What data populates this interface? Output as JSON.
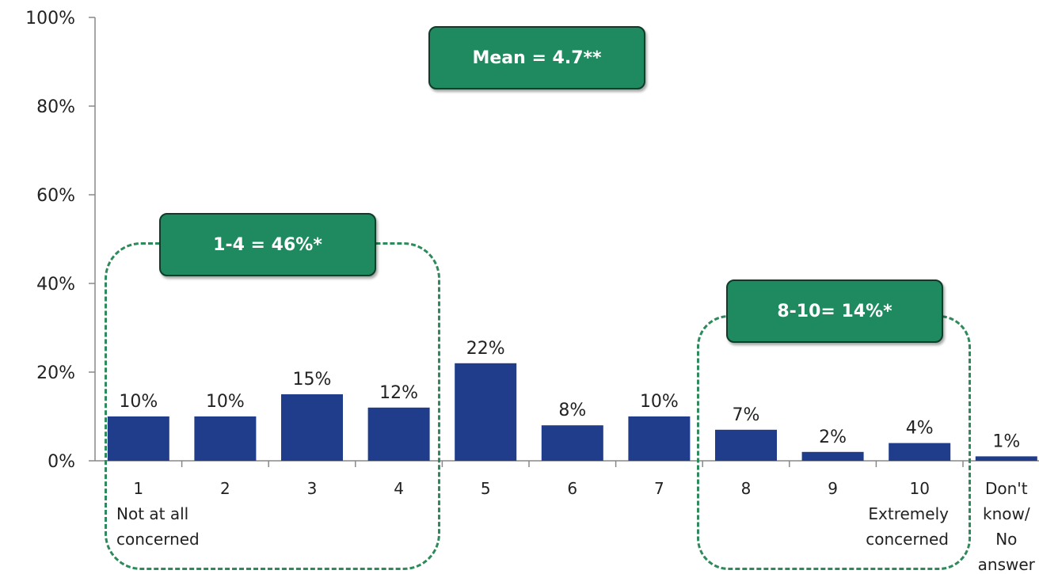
{
  "chart_data": {
    "type": "bar",
    "categories": [
      "1\nNot at all\nconcerned",
      "2",
      "3",
      "4",
      "5",
      "6",
      "7",
      "8",
      "9",
      "10\nExtremely\nconcerned",
      "Don't\nknow/\nNo\nanswer"
    ],
    "values": [
      10,
      10,
      15,
      12,
      22,
      8,
      10,
      7,
      2,
      4,
      1
    ],
    "data_labels": [
      "10%",
      "10%",
      "15%",
      "12%",
      "22%",
      "8%",
      "10%",
      "7%",
      "2%",
      "4%",
      "1%"
    ],
    "y_ticks": [
      "0%",
      "20%",
      "40%",
      "60%",
      "80%",
      "100%"
    ],
    "ylim": [
      0,
      100
    ],
    "grid": false,
    "colors": {
      "bar": "#1f3d8a",
      "callout": "#1f8a5f",
      "dashed": "#2e8a5a"
    },
    "annotations": {
      "mean": "Mean = 4.7**",
      "low_group": "1-4 = 46%*",
      "high_group": "8-10= 14%*"
    }
  }
}
